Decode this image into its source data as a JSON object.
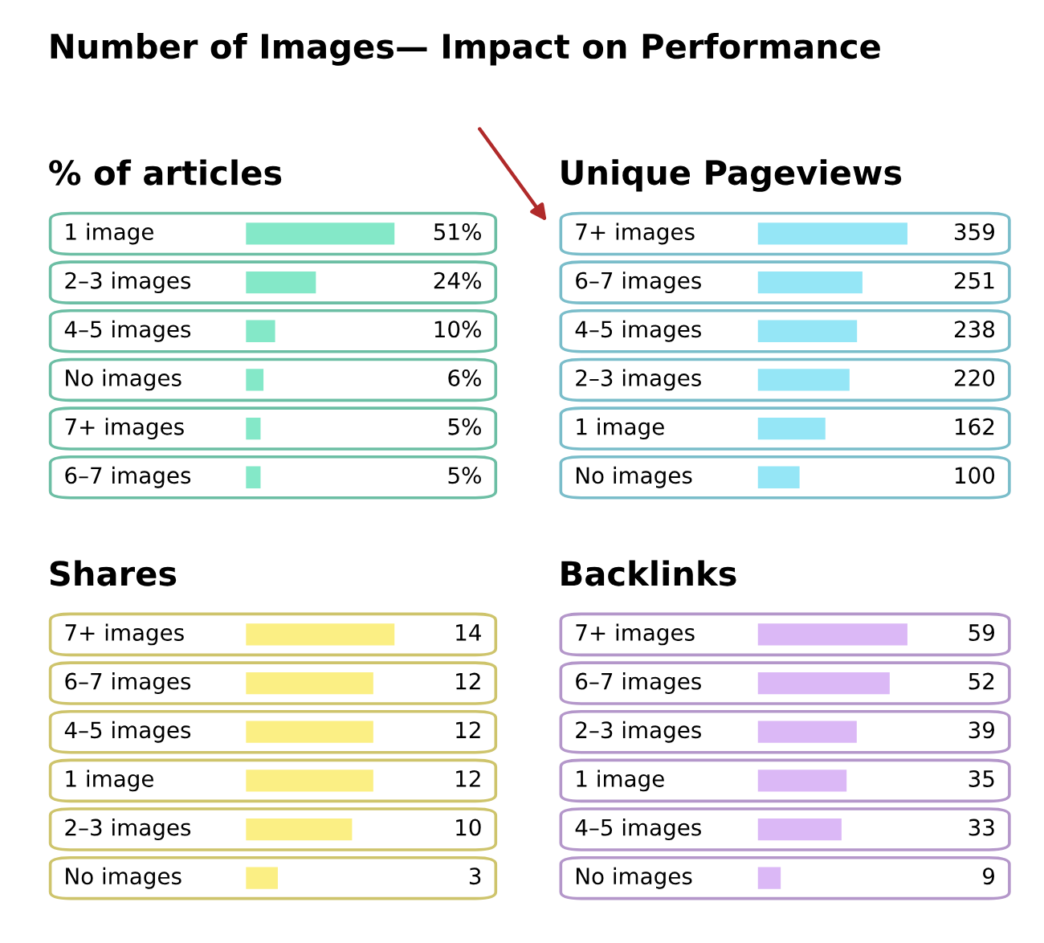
{
  "chart_data": [
    {
      "type": "bar",
      "orientation": "horizontal",
      "title": "% of articles",
      "annotations": [
        "Number of Images— Impact on Performance"
      ],
      "color": "#84e8c8",
      "categories": [
        "1 image",
        "2–3 images",
        "4–5 images",
        "No images",
        "7+ images",
        "6–7 images"
      ],
      "values": [
        51,
        24,
        10,
        6,
        5,
        5
      ],
      "value_labels": [
        "51%",
        "24%",
        "10%",
        "6%",
        "5%",
        "5%"
      ]
    },
    {
      "type": "bar",
      "orientation": "horizontal",
      "title": "Unique Pageviews",
      "color": "#95e6f6",
      "categories": [
        "7+ images",
        "6–7 images",
        "4–5 images",
        "2–3 images",
        "1 image",
        "No images"
      ],
      "values": [
        359,
        251,
        238,
        220,
        162,
        100
      ],
      "data_labels": true
    },
    {
      "type": "bar",
      "orientation": "horizontal",
      "title": "Shares",
      "color": "#fbef84",
      "categories": [
        "7+ images",
        "6–7 images",
        "4–5 images",
        "1 image",
        "2–3 images",
        "No images"
      ],
      "values": [
        14,
        12,
        12,
        12,
        10,
        3
      ],
      "data_labels": true
    },
    {
      "type": "bar",
      "orientation": "horizontal",
      "title": "Backlinks",
      "color": "#dbb8f6",
      "categories": [
        "7+ images",
        "6–7 images",
        "2–3 images",
        "1 image",
        "4–5 images",
        "No images"
      ],
      "values": [
        59,
        52,
        39,
        35,
        33,
        9
      ],
      "data_labels": true
    }
  ]
}
